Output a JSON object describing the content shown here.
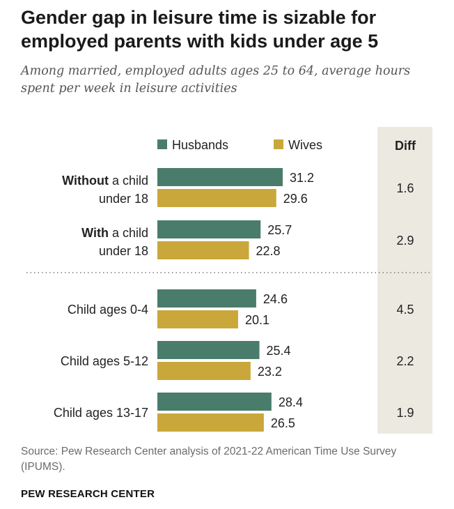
{
  "title": "Gender gap in leisure time is sizable for employed parents with kids under age 5",
  "subtitle": "Among married, employed adults ages 25 to 64, average hours spent per week in leisure activities",
  "source": "Source: Pew Research Center analysis of 2021-22 American Time Use Survey (IPUMS).",
  "brand": "PEW RESEARCH CENTER",
  "colors": {
    "husbands": "#4a7c6b",
    "wives": "#c9a73a",
    "diff_panel": "#ece9e1"
  },
  "chart_data": {
    "type": "bar",
    "orientation": "horizontal",
    "categories": [
      {
        "bold": "Without",
        "rest": " a child",
        "line2": "under 18"
      },
      {
        "bold": "With",
        "rest": " a child",
        "line2": "under 18"
      },
      {
        "bold": "",
        "rest": "Child ages 0-4",
        "line2": ""
      },
      {
        "bold": "",
        "rest": "Child ages 5-12",
        "line2": ""
      },
      {
        "bold": "",
        "rest": "Child ages 13-17",
        "line2": ""
      }
    ],
    "series": [
      {
        "name": "Husbands",
        "values": [
          31.2,
          25.7,
          24.6,
          25.4,
          28.4
        ]
      },
      {
        "name": "Wives",
        "values": [
          29.6,
          22.8,
          20.1,
          23.2,
          26.5
        ]
      }
    ],
    "diff_header": "Diff",
    "diff": [
      "1.6",
      "2.9",
      "4.5",
      "2.2",
      "1.9"
    ],
    "legend_placement": "top",
    "grid": false
  }
}
